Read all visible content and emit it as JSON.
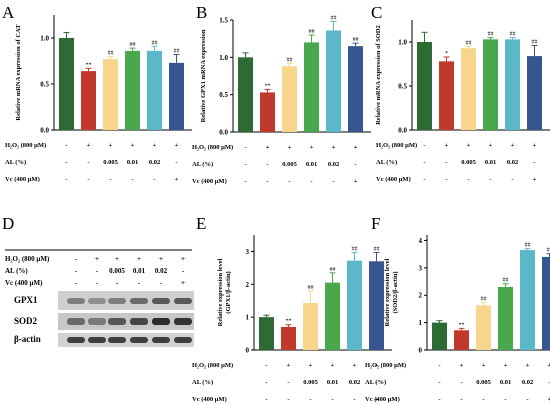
{
  "panels": [
    "A",
    "B",
    "C",
    "D",
    "E",
    "F"
  ],
  "colors": [
    "#2e6a34",
    "#c0392b",
    "#f7d58a",
    "#4aa84c",
    "#5bb8c9",
    "#37558f"
  ],
  "conditions": {
    "h2o2_label": "H₂O₂ (800 μM)",
    "al_label": "AL (%)",
    "vc_label": "Vc (400 μM)",
    "h2o2": [
      "-",
      "+",
      "+",
      "+",
      "+",
      "+"
    ],
    "al": [
      "-",
      "-",
      "0.005",
      "0.01",
      "0.02",
      "-"
    ],
    "vc": [
      "-",
      "-",
      "-",
      "-",
      "-",
      "+"
    ]
  },
  "western_blot": {
    "bands": [
      "GPX1",
      "SOD2",
      "β-actin"
    ]
  },
  "chart_data": [
    {
      "panel": "A",
      "type": "bar",
      "ylabel": "Relative mRNA expression of CAT",
      "ylim": [
        0,
        1.25
      ],
      "yticks": [
        0.0,
        0.5,
        1.0
      ],
      "values": [
        1.0,
        0.64,
        0.77,
        0.86,
        0.86,
        0.73
      ],
      "errors": [
        0.06,
        0.03,
        0.03,
        0.03,
        0.05,
        0.09
      ],
      "annotations": [
        "",
        "**",
        "##",
        "##",
        "##",
        "##"
      ]
    },
    {
      "panel": "B",
      "type": "bar",
      "ylabel": "Relative GPX1 mRNA expression",
      "ylim": [
        0,
        1.5
      ],
      "yticks": [
        0.0,
        0.5,
        1.0,
        1.5
      ],
      "values": [
        1.0,
        0.53,
        0.88,
        1.2,
        1.36,
        1.15
      ],
      "errors": [
        0.06,
        0.04,
        0.04,
        0.1,
        0.12,
        0.04
      ],
      "annotations": [
        "",
        "**",
        "##",
        "##",
        "##",
        "##"
      ]
    },
    {
      "panel": "C",
      "type": "bar",
      "ylabel": "Relative mRNA expression of SOD2",
      "ylim": [
        0,
        1.25
      ],
      "yticks": [
        0.0,
        0.5,
        1.0
      ],
      "values": [
        1.0,
        0.78,
        0.93,
        1.03,
        1.03,
        0.84
      ],
      "errors": [
        0.11,
        0.05,
        0.02,
        0.02,
        0.02,
        0.12
      ],
      "annotations": [
        "",
        "*",
        "##",
        "##",
        "##",
        "##"
      ]
    },
    {
      "panel": "E",
      "type": "bar",
      "ylabel": "Relative expression level (GPX1/β-actin)",
      "ylim": [
        0,
        3.5
      ],
      "yticks": [
        0,
        1,
        2,
        3
      ],
      "values": [
        1.0,
        0.7,
        1.43,
        2.05,
        2.72,
        2.7
      ],
      "errors": [
        0.06,
        0.07,
        0.37,
        0.3,
        0.25,
        0.27
      ],
      "annotations": [
        "",
        "**",
        "##",
        "##",
        "##",
        "##"
      ]
    },
    {
      "panel": "F",
      "type": "bar",
      "ylabel": "Relative expression level (SOD2/β-actin)",
      "ylim": [
        0,
        4.2
      ],
      "yticks": [
        0,
        1,
        2,
        3,
        4
      ],
      "values": [
        1.0,
        0.72,
        1.63,
        2.3,
        3.65,
        3.4
      ],
      "errors": [
        0.07,
        0.07,
        0.1,
        0.12,
        0.05,
        0.12
      ],
      "annotations": [
        "",
        "**",
        "##",
        "##",
        "##",
        "##"
      ]
    }
  ]
}
